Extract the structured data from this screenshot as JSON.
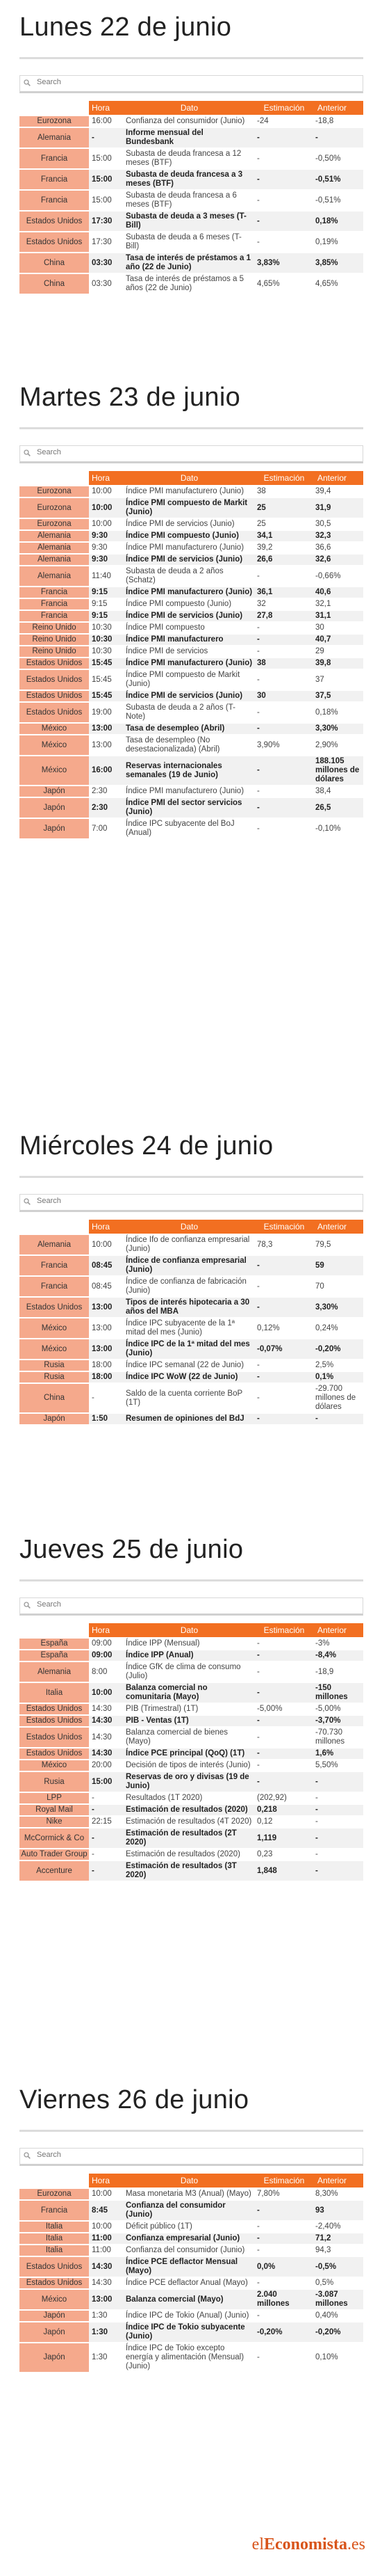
{
  "search_placeholder": "Search",
  "headers": {
    "hora": "Hora",
    "dato": "Dato",
    "est": "Estimación",
    "ant": "Anterior"
  },
  "logo": {
    "pre": "el",
    "bold": "Economista",
    "post": ".es"
  },
  "days": [
    {
      "title": "Lunes 22 de junio",
      "rows": [
        {
          "pais": "Eurozona",
          "hora": "16:00",
          "dato": "Confianza del consumidor (Junio)",
          "est": "-24",
          "ant": "-18,8",
          "b": false
        },
        {
          "pais": "Alemania",
          "hora": "-",
          "dato": "Informe mensual del Bundesbank",
          "est": "-",
          "ant": "-",
          "b": true
        },
        {
          "pais": "Francia",
          "hora": "15:00",
          "dato": "Subasta de deuda francesa a 12 meses (BTF)",
          "est": "-",
          "ant": "-0,50%",
          "b": false
        },
        {
          "pais": "Francia",
          "hora": "15:00",
          "dato": "Subasta de deuda francesa a 3 meses (BTF)",
          "est": "-",
          "ant": "-0,51%",
          "b": true
        },
        {
          "pais": "Francia",
          "hora": "15:00",
          "dato": "Subasta de deuda francesa a 6 meses (BTF)",
          "est": "-",
          "ant": "-0,51%",
          "b": false
        },
        {
          "pais": "Estados Unidos",
          "hora": "17:30",
          "dato": "Subasta de deuda a 3 meses (T-Bill)",
          "est": "-",
          "ant": "0,18%",
          "b": true
        },
        {
          "pais": "Estados Unidos",
          "hora": "17:30",
          "dato": "Subasta de deuda a 6 meses (T-Bill)",
          "est": "-",
          "ant": "0,19%",
          "b": false
        },
        {
          "pais": "China",
          "hora": "03:30",
          "dato": "Tasa de interés de préstamos a 1 año (22 de Junio)",
          "est": "3,83%",
          "ant": "3,85%",
          "b": true
        },
        {
          "pais": "China",
          "hora": "03:30",
          "dato": "Tasa de interés de préstamos a 5 años (22 de Junio)",
          "est": "4,65%",
          "ant": "4,65%",
          "b": false
        }
      ]
    },
    {
      "title": "Martes 23 de junio",
      "rows": [
        {
          "pais": "Eurozona",
          "hora": "10:00",
          "dato": "Índice PMI manufacturero (Junio)",
          "est": "38",
          "ant": "39,4",
          "b": false
        },
        {
          "pais": "Eurozona",
          "hora": "10:00",
          "dato": "Índice PMI compuesto de Markit (Junio)",
          "est": "25",
          "ant": "31,9",
          "b": true
        },
        {
          "pais": "Eurozona",
          "hora": "10:00",
          "dato": "Índice PMI de servicios (Junio)",
          "est": "25",
          "ant": "30,5",
          "b": false
        },
        {
          "pais": "Alemania",
          "hora": "9:30",
          "dato": "Índice PMI compuesto (Junio)",
          "est": "34,1",
          "ant": "32,3",
          "b": true
        },
        {
          "pais": "Alemania",
          "hora": "9:30",
          "dato": "Índice PMI manufacturero (Junio)",
          "est": "39,2",
          "ant": "36,6",
          "b": false
        },
        {
          "pais": "Alemania",
          "hora": "9:30",
          "dato": "Índice PMI de servicios (Junio)",
          "est": "26,6",
          "ant": "32,6",
          "b": true
        },
        {
          "pais": "Alemania",
          "hora": "11:40",
          "dato": "Subasta de deuda a 2 años (Schatz)",
          "est": "-",
          "ant": "-0,66%",
          "b": false
        },
        {
          "pais": "Francia",
          "hora": "9:15",
          "dato": "Índice PMI manufacturero (Junio)",
          "est": "36,1",
          "ant": "40,6",
          "b": true
        },
        {
          "pais": "Francia",
          "hora": "9:15",
          "dato": "Índice PMI compuesto (Junio)",
          "est": "32",
          "ant": "32,1",
          "b": false
        },
        {
          "pais": "Francia",
          "hora": "9:15",
          "dato": "Índice PMI de servicios (Junio)",
          "est": "27,8",
          "ant": "31,1",
          "b": true
        },
        {
          "pais": "Reino Unido",
          "hora": "10:30",
          "dato": "Índice PMI compuesto",
          "est": "-",
          "ant": "30",
          "b": false
        },
        {
          "pais": "Reino Unido",
          "hora": "10:30",
          "dato": "Índice PMI manufacturero",
          "est": "-",
          "ant": "40,7",
          "b": true
        },
        {
          "pais": "Reino Unido",
          "hora": "10:30",
          "dato": "Índice PMI de servicios",
          "est": "-",
          "ant": "29",
          "b": false
        },
        {
          "pais": "Estados Unidos",
          "hora": "15:45",
          "dato": "Índice PMI manufacturero (Junio)",
          "est": "38",
          "ant": "39,8",
          "b": true
        },
        {
          "pais": "Estados Unidos",
          "hora": "15:45",
          "dato": "Índice PMI compuesto de Markit (Junio)",
          "est": "-",
          "ant": "37",
          "b": false
        },
        {
          "pais": "Estados Unidos",
          "hora": "15:45",
          "dato": "Índice PMI de servicios (Junio)",
          "est": "30",
          "ant": "37,5",
          "b": true
        },
        {
          "pais": "Estados Unidos",
          "hora": "19:00",
          "dato": "Subasta de deuda a 2 años (T-Note)",
          "est": "-",
          "ant": "0,18%",
          "b": false
        },
        {
          "pais": "México",
          "hora": "13:00",
          "dato": "Tasa de desempleo (Abril)",
          "est": "-",
          "ant": "3,30%",
          "b": true
        },
        {
          "pais": "México",
          "hora": "13:00",
          "dato": "Tasa de desempleo (No desestacionalizada) (Abril)",
          "est": "3,90%",
          "ant": "2,90%",
          "b": false
        },
        {
          "pais": "México",
          "hora": "16:00",
          "dato": "Reservas internacionales semanales (19 de Junio)",
          "est": "-",
          "ant": "188.105 millones de dólares",
          "b": true
        },
        {
          "pais": "Japón",
          "hora": "2:30",
          "dato": "Índice PMI manufacturero (Junio)",
          "est": "-",
          "ant": "38,4",
          "b": false
        },
        {
          "pais": "Japón",
          "hora": "2:30",
          "dato": "Índice PMI del sector servicios  (Junio)",
          "est": "-",
          "ant": "26,5",
          "b": true
        },
        {
          "pais": "Japón",
          "hora": "7:00",
          "dato": "Índice IPC subyacente del BoJ (Anual)",
          "est": "-",
          "ant": "-0,10%",
          "b": false
        }
      ]
    },
    {
      "title": "Miércoles 24 de junio",
      "rows": [
        {
          "pais": "Alemania",
          "hora": "10:00",
          "dato": "Índice Ifo de confianza empresarial (Junio)",
          "est": "78,3",
          "ant": "79,5",
          "b": false
        },
        {
          "pais": "Francia",
          "hora": "08:45",
          "dato": "Índice de confianza empresarial (Junio)",
          "est": "-",
          "ant": "59",
          "b": true
        },
        {
          "pais": "Francia",
          "hora": "08:45",
          "dato": "Índice de confianza de fabricación (Junio)",
          "est": "-",
          "ant": "70",
          "b": false
        },
        {
          "pais": "Estados Unidos",
          "hora": "13:00",
          "dato": "Tipos de interés hipotecaria a 30 años del MBA",
          "est": "-",
          "ant": "3,30%",
          "b": true
        },
        {
          "pais": "México",
          "hora": "13:00",
          "dato": "Índice IPC subyacente de la 1ª mitad del mes (Junio)",
          "est": "0,12%",
          "ant": "0,24%",
          "b": false
        },
        {
          "pais": "México",
          "hora": "13:00",
          "dato": "Índice IPC de la 1ª mitad del mes (Junio)",
          "est": "-0,07%",
          "ant": "-0,20%",
          "b": true
        },
        {
          "pais": "Rusia",
          "hora": "18:00",
          "dato": "Índice IPC semanal (22 de Junio)",
          "est": "-",
          "ant": "2,5%",
          "b": false
        },
        {
          "pais": "Rusia",
          "hora": "18:00",
          "dato": "Índice IPC WoW (22 de Junio)",
          "est": "-",
          "ant": "0,1%",
          "b": true
        },
        {
          "pais": "China",
          "hora": "-",
          "dato": "Saldo de la cuenta corriente BoP (1T)",
          "est": "-",
          "ant": "-29.700 millones de dólares",
          "b": false
        },
        {
          "pais": "Japón",
          "hora": "1:50",
          "dato": "Resumen de opiniones del BdJ",
          "est": "-",
          "ant": "-",
          "b": true
        }
      ]
    },
    {
      "title": "Jueves 25 de junio",
      "rows": [
        {
          "pais": "España",
          "hora": "09:00",
          "dato": "Índice IPP (Mensual)",
          "est": "-",
          "ant": "-3%",
          "b": false
        },
        {
          "pais": "España",
          "hora": "09:00",
          "dato": "Índice IPP (Anual)",
          "est": "-",
          "ant": "-8,4%",
          "b": true
        },
        {
          "pais": "Alemania",
          "hora": "8:00",
          "dato": "Índice GfK de clima de consumo (Julio)",
          "est": "-",
          "ant": "-18,9",
          "b": false
        },
        {
          "pais": "Italia",
          "hora": "10:00",
          "dato": "Balanza comercial no comunitaria (Mayo)",
          "est": "-",
          "ant": "-150 millones",
          "b": true
        },
        {
          "pais": "Estados Unidos",
          "hora": "14:30",
          "dato": "PIB (Trimestral) (1T)",
          "est": "-5,00%",
          "ant": "-5,00%",
          "b": false
        },
        {
          "pais": "Estados Unidos",
          "hora": "14:30",
          "dato": "PIB - Ventas (1T)",
          "est": "-",
          "ant": "-3,70%",
          "b": true
        },
        {
          "pais": "Estados Unidos",
          "hora": "14:30",
          "dato": "Balanza comercial de bienes (Mayo)",
          "est": "-",
          "ant": "-70.730 millones",
          "b": false
        },
        {
          "pais": "Estados Unidos",
          "hora": "14:30",
          "dato": "Índice PCE principal (QoQ) (1T)",
          "est": "-",
          "ant": "1,6%",
          "b": true
        },
        {
          "pais": "México",
          "hora": "20:00",
          "dato": "Decisión de tipos de interés (Junio)",
          "est": "-",
          "ant": "5,50%",
          "b": false
        },
        {
          "pais": "Rusia",
          "hora": "15:00",
          "dato": "Reservas de oro y divisas (19 de Junio)",
          "est": "-",
          "ant": "-",
          "b": true
        },
        {
          "pais": "LPP",
          "hora": "-",
          "dato": "Resultados (1T 2020)",
          "est": "(202,92)",
          "ant": "-",
          "b": false
        },
        {
          "pais": "Royal Mail",
          "hora": "-",
          "dato": "Estimación de resultados (2020)",
          "est": "0,218",
          "ant": "-",
          "b": true
        },
        {
          "pais": "Nike",
          "hora": "22:15",
          "dato": "Estimación de resultados (4T 2020)",
          "est": "0,12",
          "ant": "-",
          "b": false
        },
        {
          "pais": "McCormick & Co",
          "hora": "-",
          "dato": "Estimación de resultados (2T 2020)",
          "est": "1,119",
          "ant": "-",
          "b": true
        },
        {
          "pais": "Auto Trader Group",
          "hora": "-",
          "dato": "Estimación de resultados (2020)",
          "est": "0,23",
          "ant": "-",
          "b": false
        },
        {
          "pais": "Accenture",
          "hora": "-",
          "dato": "Estimación de resultados (3T 2020)",
          "est": "1,848",
          "ant": "-",
          "b": true
        }
      ]
    },
    {
      "title": "Viernes 26 de junio",
      "rows": [
        {
          "pais": "Eurozona",
          "hora": "10:00",
          "dato": "Masa monetaria M3 (Anual) (Mayo)",
          "est": "7,80%",
          "ant": "8,30%",
          "b": false
        },
        {
          "pais": "Francia",
          "hora": "8:45",
          "dato": "Confianza del consumidor (Junio)",
          "est": "-",
          "ant": "93",
          "b": true
        },
        {
          "pais": "Italia",
          "hora": "10:00",
          "dato": "Déficit público (1T)",
          "est": "-",
          "ant": "-2,40%",
          "b": false
        },
        {
          "pais": "Italia",
          "hora": "11:00",
          "dato": "Confianza empresarial (Junio)",
          "est": "-",
          "ant": "71,2",
          "b": true
        },
        {
          "pais": "Italia",
          "hora": "11:00",
          "dato": "Confianza del consumidor (Junio)",
          "est": "-",
          "ant": "94,3",
          "b": false
        },
        {
          "pais": "Estados Unidos",
          "hora": "14:30",
          "dato": "Índice PCE deflactor Mensual (Mayo)",
          "est": "0,0%",
          "ant": "-0,5%",
          "b": true
        },
        {
          "pais": "Estados Unidos",
          "hora": "14:30",
          "dato": "Índice PCE deflactor Anual (Mayo)",
          "est": "-",
          "ant": "0,5%",
          "b": false
        },
        {
          "pais": "México",
          "hora": "13:00",
          "dato": "Balanza comercial (Mayo)",
          "est": "2.040 millones",
          "ant": "-3.087 millones",
          "b": true
        },
        {
          "pais": "Japón",
          "hora": "1:30",
          "dato": "Índice IPC de Tokio (Anual) (Junio)",
          "est": "-",
          "ant": "0,40%",
          "b": false
        },
        {
          "pais": "Japón",
          "hora": "1:30",
          "dato": "Índice IPC de Tokio subyacente (Junio)",
          "est": "-0,20%",
          "ant": "-0,20%",
          "b": true
        },
        {
          "pais": "Japón",
          "hora": "1:30",
          "dato": "Índice IPC de Tokio excepto energía y alimentación (Mensual) (Junio)",
          "est": "-",
          "ant": "0,10%",
          "b": false
        }
      ]
    }
  ]
}
